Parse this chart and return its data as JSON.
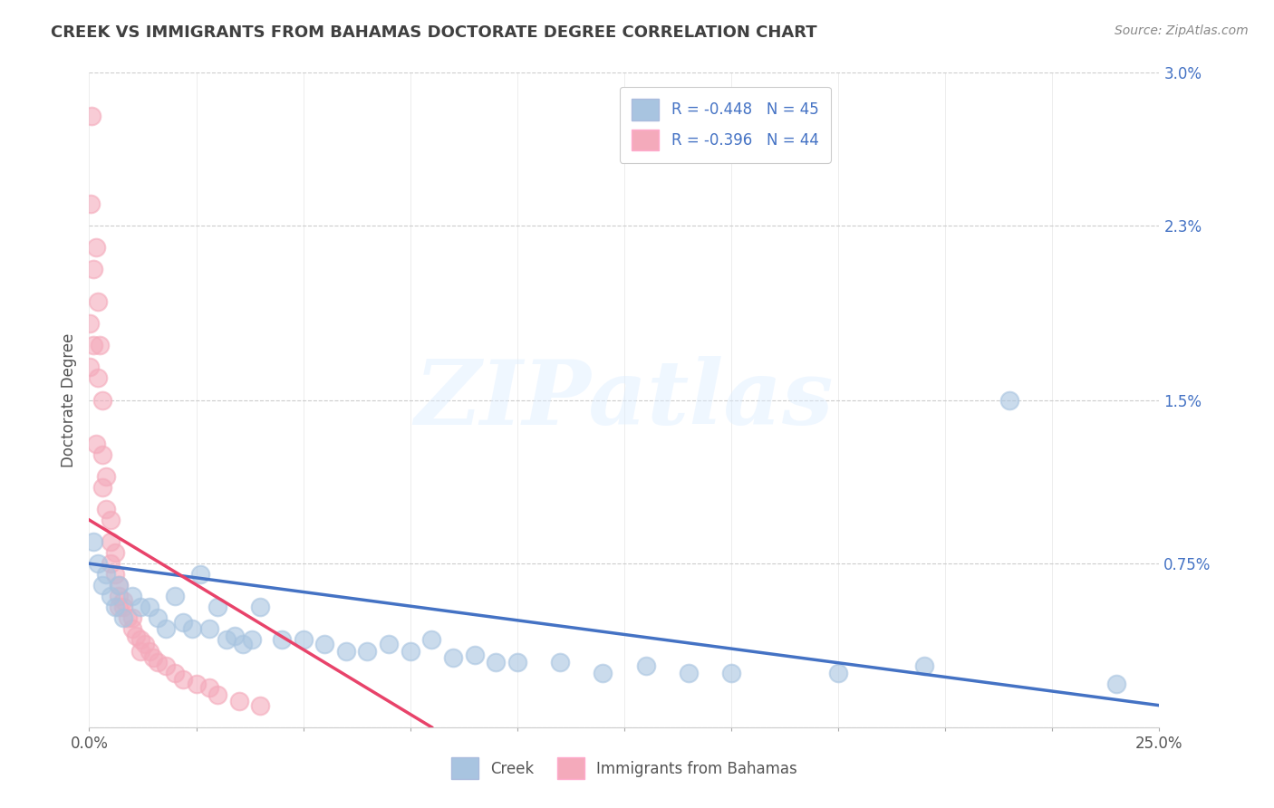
{
  "title": "CREEK VS IMMIGRANTS FROM BAHAMAS DOCTORATE DEGREE CORRELATION CHART",
  "source_text": "Source: ZipAtlas.com",
  "ylabel": "Doctorate Degree",
  "xlim": [
    0.0,
    0.25
  ],
  "ylim": [
    0.0,
    0.03
  ],
  "xticks": [
    0.0,
    0.025,
    0.05,
    0.075,
    0.1,
    0.125,
    0.15,
    0.175,
    0.2,
    0.225,
    0.25
  ],
  "xtick_labels_show": {
    "0": "0.0%",
    "10": "25.0%"
  },
  "yticks": [
    0.0,
    0.0075,
    0.015,
    0.023,
    0.03
  ],
  "ytick_labels": [
    "",
    "0.75%",
    "1.5%",
    "2.3%",
    "3.0%"
  ],
  "legend_r1": "R = -0.448",
  "legend_n1": "N = 45",
  "legend_r2": "R = -0.396",
  "legend_n2": "N = 44",
  "legend_label1": "Creek",
  "legend_label2": "Immigrants from Bahamas",
  "blue_color": "#A8C4E0",
  "pink_color": "#F4AABB",
  "blue_line_color": "#4472C4",
  "pink_line_color": "#E8436A",
  "watermark": "ZIPatlas",
  "background_color": "#FFFFFF",
  "title_color": "#404040",
  "source_color": "#888888",
  "grid_color": "#CCCCCC",
  "blue_scatter_x": [
    0.001,
    0.002,
    0.003,
    0.004,
    0.005,
    0.006,
    0.007,
    0.008,
    0.01,
    0.012,
    0.014,
    0.016,
    0.018,
    0.02,
    0.022,
    0.024,
    0.026,
    0.028,
    0.03,
    0.032,
    0.034,
    0.036,
    0.038,
    0.04,
    0.045,
    0.05,
    0.055,
    0.06,
    0.065,
    0.07,
    0.075,
    0.08,
    0.085,
    0.09,
    0.095,
    0.1,
    0.11,
    0.12,
    0.13,
    0.14,
    0.15,
    0.175,
    0.195,
    0.215,
    0.24
  ],
  "blue_scatter_y": [
    0.0085,
    0.0075,
    0.0065,
    0.007,
    0.006,
    0.0055,
    0.0065,
    0.005,
    0.006,
    0.0055,
    0.0055,
    0.005,
    0.0045,
    0.006,
    0.0048,
    0.0045,
    0.007,
    0.0045,
    0.0055,
    0.004,
    0.0042,
    0.0038,
    0.004,
    0.0055,
    0.004,
    0.004,
    0.0038,
    0.0035,
    0.0035,
    0.0038,
    0.0035,
    0.004,
    0.0032,
    0.0033,
    0.003,
    0.003,
    0.003,
    0.0025,
    0.0028,
    0.0025,
    0.0025,
    0.0025,
    0.0028,
    0.015,
    0.002
  ],
  "pink_scatter_x": [
    0.0005,
    0.001,
    0.0015,
    0.002,
    0.0025,
    0.003,
    0.003,
    0.004,
    0.004,
    0.005,
    0.005,
    0.006,
    0.006,
    0.007,
    0.007,
    0.008,
    0.008,
    0.009,
    0.01,
    0.01,
    0.011,
    0.012,
    0.013,
    0.014,
    0.015,
    0.016,
    0.018,
    0.02,
    0.022,
    0.025,
    0.028,
    0.03,
    0.035,
    0.04,
    0.0001,
    0.0002,
    0.0003,
    0.001,
    0.0015,
    0.002,
    0.003,
    0.005,
    0.007,
    0.012
  ],
  "pink_scatter_y": [
    0.028,
    0.021,
    0.022,
    0.0195,
    0.0175,
    0.015,
    0.0125,
    0.0115,
    0.01,
    0.0095,
    0.0085,
    0.008,
    0.007,
    0.0065,
    0.006,
    0.0058,
    0.0055,
    0.005,
    0.005,
    0.0045,
    0.0042,
    0.004,
    0.0038,
    0.0035,
    0.0032,
    0.003,
    0.0028,
    0.0025,
    0.0022,
    0.002,
    0.0018,
    0.0015,
    0.0012,
    0.001,
    0.0165,
    0.0185,
    0.024,
    0.0175,
    0.013,
    0.016,
    0.011,
    0.0075,
    0.0055,
    0.0035
  ],
  "blue_line_x": [
    0.0,
    0.25
  ],
  "blue_line_y": [
    0.0075,
    0.001
  ],
  "pink_line_x": [
    0.0,
    0.08
  ],
  "pink_line_y": [
    0.0095,
    0.0
  ],
  "title_fontsize": 13,
  "tick_fontsize": 12,
  "ylabel_fontsize": 12,
  "legend_fontsize": 12,
  "source_fontsize": 10
}
